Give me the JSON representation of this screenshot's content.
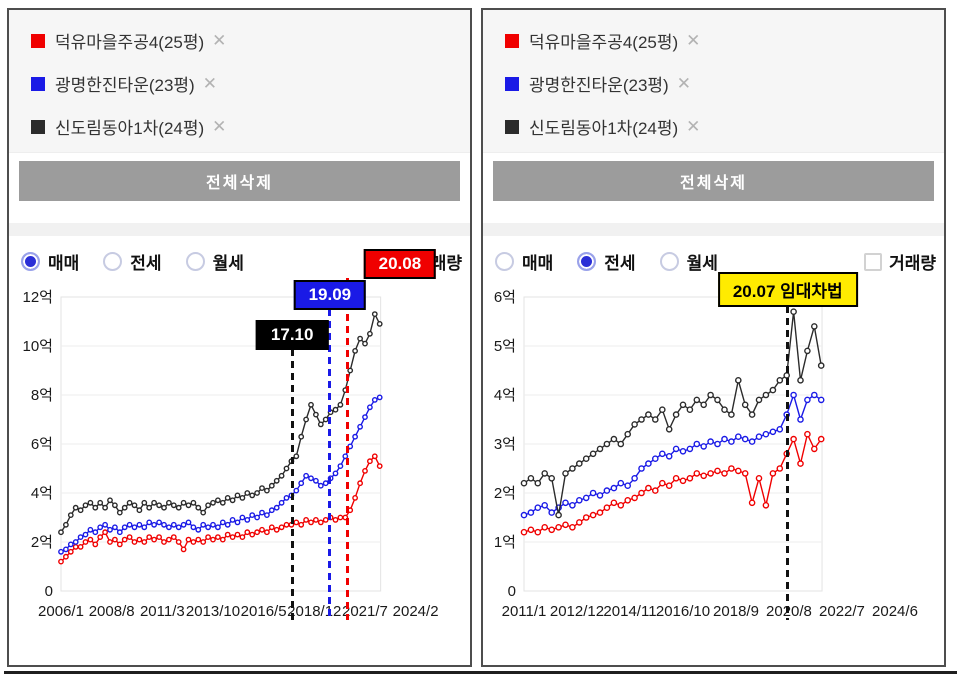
{
  "ui": {
    "accent_blue": "#2b2fd6",
    "button_gray": "#9c9c9c"
  },
  "panels": [
    {
      "legend": [
        {
          "name": "덕유마을주공4(25평)",
          "color": "#f00000",
          "close": "✕"
        },
        {
          "name": "광명한진타운(23평)",
          "color": "#1a1ae6",
          "close": "✕"
        },
        {
          "name": "신도림동아1차(24평)",
          "color": "#2b2b2b",
          "close": "✕"
        }
      ],
      "delete_all_label": "전체삭제",
      "controls": {
        "options": [
          {
            "label": "매매",
            "selected": true
          },
          {
            "label": "전세",
            "selected": false
          },
          {
            "label": "월세",
            "selected": false
          }
        ],
        "volume_label": "거래량",
        "volume_checked": false
      },
      "chart_data": {
        "type": "line",
        "unit": "억",
        "ylim": [
          0,
          12
        ],
        "y_ticks": [
          0,
          2,
          4,
          6,
          8,
          10,
          12
        ],
        "x_tick_labels": [
          "2006/1",
          "2008/8",
          "2011/3",
          "2013/10",
          "2016/5",
          "2018/12",
          "2021/7",
          "2024/2"
        ],
        "x_tick_years": [
          2006.0,
          2008.583,
          2011.167,
          2013.75,
          2016.333,
          2018.917,
          2021.5,
          2024.083
        ],
        "xlim": [
          2006.0,
          2022.3
        ],
        "x_start": 2006.0,
        "x_step": 0.25,
        "grid": true,
        "series": [
          {
            "name": "덕유마을주공4(25평)",
            "color": "#f00000",
            "values": [
              1.2,
              1.4,
              1.6,
              1.8,
              1.8,
              2.0,
              2.1,
              1.9,
              2.2,
              2.4,
              2.0,
              2.1,
              1.9,
              2.1,
              2.2,
              2.0,
              2.1,
              2.0,
              2.2,
              2.1,
              2.2,
              2.0,
              2.1,
              2.2,
              2.0,
              1.7,
              2.1,
              2.0,
              2.1,
              2.0,
              2.2,
              2.1,
              2.2,
              2.1,
              2.3,
              2.2,
              2.3,
              2.2,
              2.4,
              2.3,
              2.4,
              2.5,
              2.4,
              2.6,
              2.5,
              2.6,
              2.7,
              2.7,
              2.8,
              2.7,
              2.9,
              2.8,
              2.9,
              2.8,
              2.9,
              3.0,
              2.9,
              3.0,
              3.0,
              3.3,
              3.8,
              4.4,
              4.9,
              5.3,
              5.5,
              5.1
            ]
          },
          {
            "name": "광명한진타운(23평)",
            "color": "#1a1ae6",
            "values": [
              1.6,
              1.7,
              1.9,
              2.0,
              2.2,
              2.3,
              2.5,
              2.4,
              2.6,
              2.7,
              2.5,
              2.6,
              2.4,
              2.6,
              2.7,
              2.6,
              2.7,
              2.6,
              2.8,
              2.7,
              2.8,
              2.7,
              2.6,
              2.7,
              2.6,
              2.7,
              2.8,
              2.6,
              2.5,
              2.7,
              2.6,
              2.7,
              2.6,
              2.8,
              2.7,
              2.9,
              2.8,
              3.0,
              2.9,
              3.1,
              3.0,
              3.2,
              3.1,
              3.3,
              3.4,
              3.6,
              3.8,
              3.9,
              4.1,
              4.4,
              4.7,
              4.6,
              4.5,
              4.3,
              4.4,
              4.6,
              4.8,
              5.1,
              5.5,
              5.9,
              6.3,
              6.7,
              7.1,
              7.5,
              7.8,
              7.9
            ]
          },
          {
            "name": "신도림동아1차(24평)",
            "color": "#2b2b2b",
            "values": [
              2.4,
              2.7,
              3.1,
              3.4,
              3.3,
              3.5,
              3.6,
              3.4,
              3.6,
              3.4,
              3.7,
              3.5,
              3.2,
              3.4,
              3.6,
              3.5,
              3.3,
              3.6,
              3.4,
              3.6,
              3.5,
              3.4,
              3.6,
              3.5,
              3.4,
              3.6,
              3.5,
              3.6,
              3.4,
              3.2,
              3.5,
              3.6,
              3.7,
              3.6,
              3.8,
              3.7,
              3.9,
              3.8,
              4.0,
              3.9,
              4.0,
              4.2,
              4.1,
              4.3,
              4.5,
              4.7,
              5.0,
              5.3,
              5.5,
              6.3,
              7.0,
              7.6,
              7.2,
              6.8,
              7.0,
              7.3,
              7.4,
              7.6,
              8.2,
              9.0,
              9.8,
              10.3,
              10.1,
              10.5,
              11.3,
              10.9
            ]
          }
        ],
        "annotations": [
          {
            "label": "17.10",
            "x_year": 2017.79,
            "bg": "#000000",
            "fg": "#ffffff",
            "line": "#111111"
          },
          {
            "label": "19.09",
            "x_year": 2019.71,
            "bg": "#1a1ae6",
            "fg": "#ffffff",
            "line": "#1a1ae6"
          },
          {
            "label": "20.08",
            "x_year": 2020.63,
            "bg": "#f00000",
            "fg": "#ffffff",
            "line": "#f00000"
          }
        ]
      }
    },
    {
      "legend": [
        {
          "name": "덕유마을주공4(25평)",
          "color": "#f00000",
          "close": "✕"
        },
        {
          "name": "광명한진타운(23평)",
          "color": "#1a1ae6",
          "close": "✕"
        },
        {
          "name": "신도림동아1차(24평)",
          "color": "#2b2b2b",
          "close": "✕"
        }
      ],
      "delete_all_label": "전체삭제",
      "controls": {
        "options": [
          {
            "label": "매매",
            "selected": false
          },
          {
            "label": "전세",
            "selected": true
          },
          {
            "label": "월세",
            "selected": false
          }
        ],
        "volume_label": "거래량",
        "volume_checked": false
      },
      "chart_data": {
        "type": "line",
        "unit": "억",
        "ylim": [
          0,
          6
        ],
        "y_ticks": [
          0,
          1,
          2,
          3,
          4,
          5,
          6
        ],
        "x_tick_labels": [
          "2011/1",
          "2012/12",
          "2014/11",
          "2016/10",
          "2018/9",
          "2020/8",
          "2022/7",
          "2024/6"
        ],
        "x_tick_years": [
          2011.0,
          2012.917,
          2014.833,
          2016.75,
          2018.667,
          2020.583,
          2022.5,
          2024.417
        ],
        "xlim": [
          2011.0,
          2021.78
        ],
        "x_start": 2011.0,
        "x_step": 0.25,
        "grid": true,
        "series": [
          {
            "name": "덕유마을주공4(25평)",
            "color": "#f00000",
            "values": [
              1.2,
              1.25,
              1.2,
              1.3,
              1.25,
              1.3,
              1.35,
              1.3,
              1.4,
              1.5,
              1.55,
              1.6,
              1.7,
              1.8,
              1.75,
              1.85,
              1.9,
              2.0,
              2.1,
              2.05,
              2.2,
              2.15,
              2.3,
              2.25,
              2.3,
              2.4,
              2.35,
              2.4,
              2.45,
              2.4,
              2.5,
              2.45,
              2.4,
              1.8,
              2.3,
              1.75,
              2.4,
              2.5,
              2.8,
              3.1,
              2.6,
              3.2,
              2.9,
              3.1
            ]
          },
          {
            "name": "광명한진타운(23평)",
            "color": "#1a1ae6",
            "values": [
              1.55,
              1.6,
              1.7,
              1.75,
              1.6,
              1.7,
              1.8,
              1.75,
              1.85,
              1.9,
              2.0,
              1.95,
              2.05,
              2.1,
              2.2,
              2.15,
              2.3,
              2.5,
              2.6,
              2.7,
              2.8,
              2.75,
              2.9,
              2.85,
              2.9,
              3.0,
              2.95,
              3.05,
              3.0,
              3.1,
              3.05,
              3.15,
              3.1,
              3.05,
              3.15,
              3.2,
              3.25,
              3.3,
              3.6,
              4.0,
              3.5,
              3.9,
              4.0,
              3.9
            ]
          },
          {
            "name": "신도림동아1차(24평)",
            "color": "#2b2b2b",
            "values": [
              2.2,
              2.3,
              2.2,
              2.4,
              2.3,
              1.55,
              2.4,
              2.5,
              2.6,
              2.7,
              2.8,
              2.9,
              3.0,
              3.1,
              3.0,
              3.2,
              3.4,
              3.5,
              3.6,
              3.5,
              3.7,
              3.3,
              3.6,
              3.8,
              3.7,
              3.9,
              3.8,
              4.0,
              3.9,
              3.7,
              3.6,
              4.3,
              3.8,
              3.6,
              3.9,
              4.0,
              4.1,
              4.3,
              4.4,
              5.7,
              4.3,
              4.9,
              5.4,
              4.6
            ]
          }
        ],
        "annotations": [
          {
            "label": "20.07 임대차법",
            "x_year": 2020.54,
            "bg": "#ffeb00",
            "fg": "#000000",
            "line": "#111111"
          }
        ]
      }
    }
  ]
}
